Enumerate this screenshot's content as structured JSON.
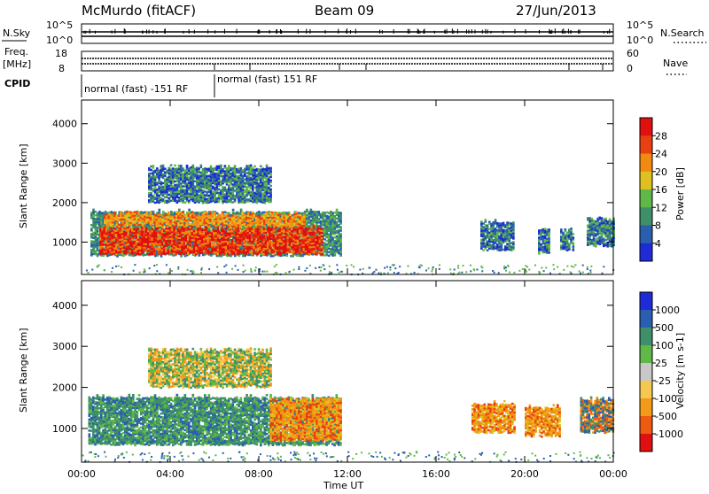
{
  "header": {
    "title": "McMurdo (fitACF)",
    "beam": "Beam 09",
    "date": "27/Jun/2013"
  },
  "strips": {
    "nsky_label": "N.Sky",
    "nsearch_label": "N.Search",
    "noise_left_ticks": [
      "10^5",
      "10^0"
    ],
    "noise_right_ticks": [
      "10^5",
      "10^0"
    ],
    "freq_label_1": "Freq.",
    "freq_label_2": "[MHz]",
    "freq_ticks": [
      "18",
      "8"
    ],
    "nave_label": "Nave",
    "nave_ticks": [
      "60",
      "0"
    ],
    "cpid_label": "CPID",
    "cpid_modes": [
      "normal (fast) -151 RF",
      "normal (fast) 151 RF"
    ]
  },
  "colors": {
    "power": [
      "#1f2bd6",
      "#2a5fb0",
      "#3f8f6a",
      "#5fb848",
      "#e0c020",
      "#f08a10",
      "#e84010",
      "#e01010"
    ],
    "velocity": [
      "#e01010",
      "#ee5a10",
      "#f39a18",
      "#f5c850",
      "#c8c8c8",
      "#5fb848",
      "#3f8f6a",
      "#2a5fb0",
      "#1f2bd6"
    ]
  },
  "chart_data": [
    {
      "type": "heatmap",
      "name": "power-panel",
      "ylabel": "Slant Range [km]",
      "ylim": [
        180,
        4600
      ],
      "y_ticks": [
        1000,
        2000,
        3000,
        4000
      ],
      "xlim": [
        0,
        24
      ],
      "x_ticks": [
        "00:00",
        "04:00",
        "08:00",
        "12:00",
        "16:00",
        "20:00",
        "00:00"
      ],
      "colorbar_label": "Power [dB]",
      "colorbar_ticks": [
        4,
        8,
        12,
        16,
        20,
        24,
        28
      ],
      "colorbar_range": [
        0,
        32
      ],
      "regions": [
        {
          "t0": 0.4,
          "t1": 11.7,
          "r0": 650,
          "r1": 1750,
          "level": "green"
        },
        {
          "t0": 0.8,
          "t1": 10.8,
          "r0": 700,
          "r1": 1350,
          "level": "red"
        },
        {
          "t0": 1.0,
          "t1": 10.0,
          "r0": 1400,
          "r1": 1700,
          "level": "orange"
        },
        {
          "t0": 3.0,
          "t1": 8.5,
          "r0": 2000,
          "r1": 2900,
          "level": "blue-green"
        },
        {
          "t0": 18.0,
          "t1": 19.5,
          "r0": 800,
          "r1": 1500,
          "level": "blue-green"
        },
        {
          "t0": 20.6,
          "t1": 21.1,
          "r0": 700,
          "r1": 1300,
          "level": "blue-green"
        },
        {
          "t0": 21.6,
          "t1": 22.2,
          "r0": 800,
          "r1": 1300,
          "level": "blue-green"
        },
        {
          "t0": 22.8,
          "t1": 24.0,
          "r0": 900,
          "r1": 1600,
          "level": "blue-green"
        }
      ]
    },
    {
      "type": "heatmap",
      "name": "velocity-panel",
      "ylabel": "Slant Range [km]",
      "ylim": [
        180,
        4600
      ],
      "y_ticks": [
        1000,
        2000,
        3000,
        4000
      ],
      "xlim": [
        0,
        24
      ],
      "x_ticks": [
        "00:00",
        "04:00",
        "08:00",
        "12:00",
        "16:00",
        "20:00",
        "00:00"
      ],
      "xlabel": "Time UT",
      "colorbar_label": "Velocity [m s-1]",
      "colorbar_ticks": [
        "-1000",
        "-500",
        "-100",
        "-25",
        "25",
        "100",
        "500",
        "1000"
      ],
      "regions": [
        {
          "t0": 0.3,
          "t1": 11.7,
          "r0": 600,
          "r1": 1750,
          "level": "green"
        },
        {
          "t0": 8.5,
          "t1": 11.7,
          "r0": 700,
          "r1": 1700,
          "level": "orange"
        },
        {
          "t0": 3.0,
          "t1": 8.5,
          "r0": 2000,
          "r1": 2900,
          "level": "orange-mix"
        },
        {
          "t0": 17.6,
          "t1": 19.5,
          "r0": 900,
          "r1": 1600,
          "level": "orange"
        },
        {
          "t0": 20.0,
          "t1": 21.6,
          "r0": 800,
          "r1": 1500,
          "level": "orange"
        },
        {
          "t0": 22.5,
          "t1": 24.0,
          "r0": 900,
          "r1": 1700,
          "level": "orange-blue"
        }
      ]
    }
  ]
}
